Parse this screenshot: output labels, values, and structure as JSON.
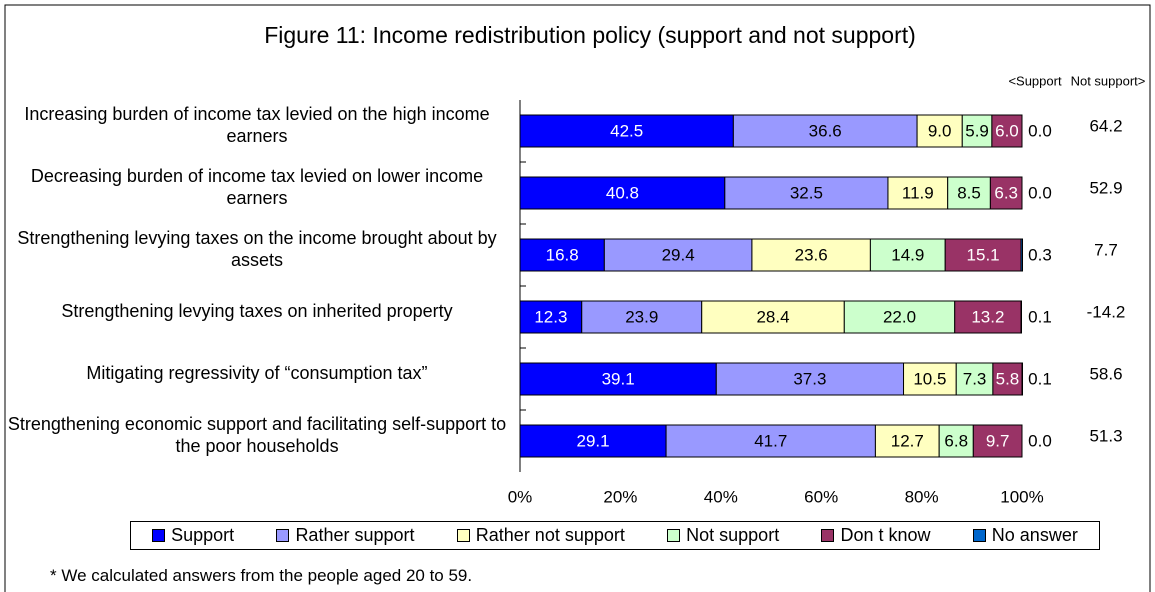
{
  "chart_data": {
    "type": "stacked_barh",
    "title": "Figure 11: Income redistribution policy (support and not support)",
    "categories": [
      "Increasing burden of income tax levied on the high income earners",
      "Decreasing burden of income tax levied on lower income earners",
      "Strengthening levying taxes on the income brought about by assets",
      "Strengthening levying taxes on inherited property",
      "Mitigating regressivity of “consumption tax”",
      "Strengthening economic support and facilitating self-support to the poor households"
    ],
    "series": [
      {
        "name": "Support",
        "color": "#0000ff",
        "values": [
          42.5,
          40.8,
          16.8,
          12.3,
          39.1,
          29.1
        ],
        "value_labels": [
          "42.5",
          "40.8",
          "16.8",
          "12.3",
          "39.1",
          "29.1"
        ]
      },
      {
        "name": "Rather support",
        "color": "#9999ff",
        "values": [
          36.6,
          32.5,
          29.4,
          23.9,
          37.3,
          41.7
        ],
        "value_labels": [
          "36.6",
          "32.5",
          "29.4",
          "23.9",
          "37.3",
          "41.7"
        ]
      },
      {
        "name": "Rather not support",
        "color": "#ffffc0",
        "values": [
          9.0,
          11.9,
          23.6,
          28.4,
          10.5,
          12.7
        ],
        "value_labels": [
          "9.0",
          "11.9",
          "23.6",
          "28.4",
          "10.5",
          "12.7"
        ]
      },
      {
        "name": "Not support",
        "color": "#ccffcc",
        "values": [
          5.9,
          8.5,
          14.9,
          22.0,
          7.3,
          6.8
        ],
        "value_labels": [
          "5.9",
          "8.5",
          "14.9",
          "22.0",
          "7.3",
          "6.8"
        ]
      },
      {
        "name": "Don t know",
        "color": "#993366",
        "values": [
          6.0,
          6.3,
          15.1,
          13.2,
          5.8,
          9.7
        ],
        "value_labels": [
          "6.0",
          "6.3",
          "15.1",
          "13.2",
          "5.8",
          "9.7"
        ]
      },
      {
        "name": "No answer",
        "color": "#0066cc",
        "values": [
          0.0,
          0.0,
          0.3,
          0.1,
          0.1,
          0.0
        ],
        "value_labels": [
          "0.0",
          "0.0",
          "0.3",
          "0.1",
          "0.1",
          "0.0"
        ]
      }
    ],
    "difference_header": [
      "<Support",
      "Not support>"
    ],
    "differences": [
      64.2,
      52.9,
      7.7,
      -14.2,
      58.6,
      51.3
    ],
    "xlim": [
      0,
      100
    ],
    "xticks": [
      {
        "value": 0,
        "label": "0%"
      },
      {
        "value": 20,
        "label": "20%"
      },
      {
        "value": 40,
        "label": "40%"
      },
      {
        "value": 60,
        "label": "60%"
      },
      {
        "value": 80,
        "label": "80%"
      },
      {
        "value": 100,
        "label": "100%"
      }
    ],
    "footnote": "* We calculated answers from the people aged 20 to 59."
  }
}
